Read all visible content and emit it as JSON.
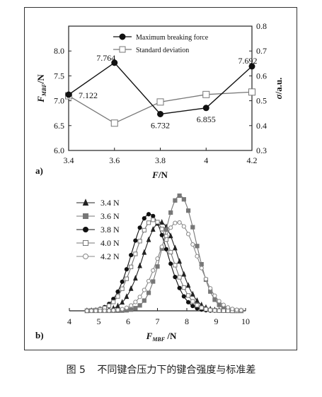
{
  "caption": {
    "figure_no": "图 5",
    "text": "不同键合压力下的键合强度与标准差"
  },
  "chart_data": [
    {
      "type": "line",
      "panel_label": "a)",
      "x": [
        3.4,
        3.6,
        3.8,
        4.0,
        4.2
      ],
      "xlim": [
        3.4,
        4.2
      ],
      "xticks": [
        "3.4",
        "3.6",
        "3.8",
        "4",
        "4.2"
      ],
      "xlabel": "F/N",
      "ylabel_left": "FMBF/N",
      "ylim_left": [
        6.0,
        8.5
      ],
      "yticks_left": [
        "6.0",
        "6.5",
        "7.0",
        "7.5",
        "8.0"
      ],
      "ylabel_right": "σ/a.u.",
      "ylim_right": [
        0.3,
        0.8
      ],
      "yticks_right": [
        "0.3",
        "0.4",
        "0.5",
        "0.6",
        "0.7",
        "0.8"
      ],
      "legend_position": "top-right",
      "series": [
        {
          "name": "Maximum breaking force",
          "axis": "left",
          "marker": "filled-circle",
          "color": "#111111",
          "values": [
            7.122,
            7.764,
            6.732,
            6.855,
            7.692
          ],
          "labels": [
            "7.122",
            "7.764",
            "6.732",
            "6.855",
            "7.692"
          ]
        },
        {
          "name": "Standard deviation",
          "axis": "right",
          "marker": "open-square",
          "color": "#777777",
          "values": [
            0.52,
            0.41,
            0.495,
            0.525,
            0.535
          ]
        }
      ]
    },
    {
      "type": "line",
      "panel_label": "b)",
      "xlim": [
        4,
        10
      ],
      "xticks": [
        "4",
        "5",
        "6",
        "7",
        "8",
        "9",
        "10"
      ],
      "xlabel": "FMBF /N",
      "ylim": [
        0,
        1
      ],
      "legend_position": "top-left",
      "series": [
        {
          "name": "3.4 N",
          "marker": "filled-triangle",
          "color": "#222222",
          "mean": 7.1,
          "sd": 0.6,
          "peak": 0.77
        },
        {
          "name": "3.6 N",
          "marker": "filled-square",
          "color": "#777777",
          "mean": 7.76,
          "sd": 0.55,
          "peak": 1.0
        },
        {
          "name": "3.8 N",
          "marker": "filled-circle",
          "color": "#111111",
          "mean": 6.73,
          "sd": 0.6,
          "peak": 0.84
        },
        {
          "name": "4.0 N",
          "marker": "open-square",
          "color": "#777777",
          "mean": 6.86,
          "sd": 0.63,
          "peak": 0.79
        },
        {
          "name": "4.2 N",
          "marker": "open-circle",
          "color": "#888888",
          "mean": 7.69,
          "sd": 0.67,
          "peak": 0.77
        }
      ]
    }
  ]
}
